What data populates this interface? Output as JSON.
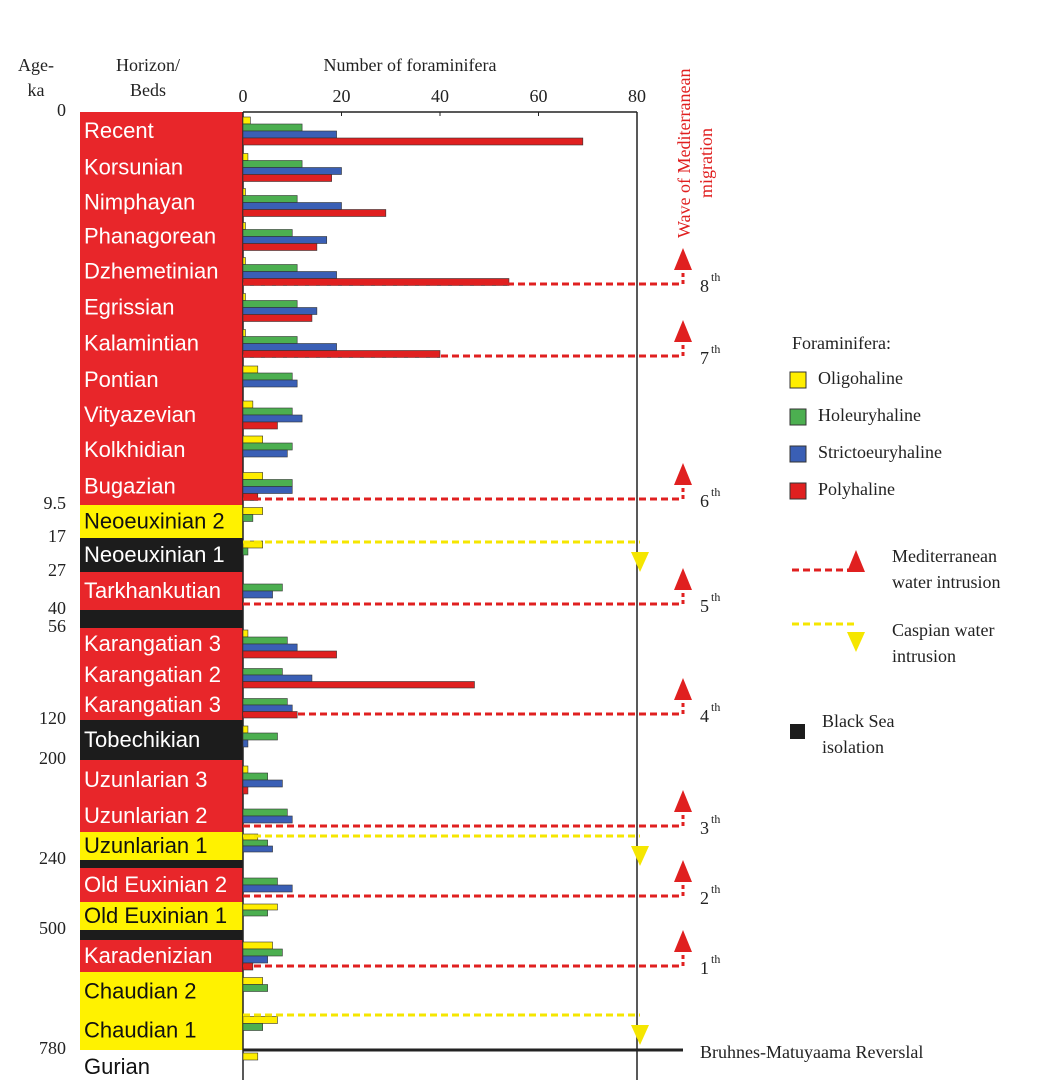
{
  "chart_data": {
    "type": "bar",
    "xlabel": "Number of foraminifera",
    "age_label": [
      "Age-",
      "ka"
    ],
    "horizon_label": [
      "Horizon/",
      "Beds"
    ],
    "wave_title": [
      "Wave of Mediterranean",
      "migration"
    ],
    "xlim": [
      0,
      80
    ],
    "xticks": [
      0,
      20,
      40,
      60,
      80
    ],
    "categories": [
      "Recent",
      "Korsunian",
      "Nimphayan",
      "Phanagorean",
      "Dzhemetinian",
      "Egrissian",
      "Kalamintian",
      "Pontian",
      "Vityazevian",
      "Kolkhidian",
      "Bugazian",
      "Neoeuxinian 2",
      "Neoeuxinian 1",
      "Tarkhankutian",
      null,
      "Karangatian 3",
      "Karangatian 2",
      "Karangatian 3",
      "Tobechikian",
      "Uzunlarian 3",
      "Uzunlarian 2",
      "Uzunlarian 1",
      null,
      "Old Euxinian 2",
      "Old Euxinian 1",
      null,
      "Karadenizian",
      "Chaudian 2",
      "Chaudian 1",
      "Gurian"
    ],
    "horizon_colors": [
      "#e8262a",
      "#e8262a",
      "#e8262a",
      "#e8262a",
      "#e8262a",
      "#e8262a",
      "#e8262a",
      "#e8262a",
      "#e8262a",
      "#e8262a",
      "#e8262a",
      "#fff200",
      "#1c1c1c",
      "#e8262a",
      "#1c1c1c",
      "#e8262a",
      "#e8262a",
      "#e8262a",
      "#1c1c1c",
      "#e8262a",
      "#e8262a",
      "#fff200",
      "#1c1c1c",
      "#e8262a",
      "#fff200",
      "#1c1c1c",
      "#e8262a",
      "#fff200",
      "#fff200",
      "#ffffff"
    ],
    "ages": [
      0,
      null,
      null,
      null,
      null,
      null,
      null,
      null,
      null,
      null,
      null,
      9.5,
      17,
      27,
      40,
      56,
      null,
      null,
      120,
      200,
      null,
      null,
      240,
      null,
      null,
      500,
      null,
      null,
      null,
      780
    ],
    "series": [
      {
        "name": "Oligohaline",
        "color": "#ffee00",
        "values": [
          1.5,
          1,
          0.5,
          0.5,
          0.5,
          0.5,
          0.5,
          3,
          2,
          4,
          4,
          4,
          4,
          0,
          null,
          1,
          0,
          0,
          1,
          1,
          0,
          3,
          null,
          0,
          7,
          null,
          6,
          4,
          7,
          3
        ]
      },
      {
        "name": "Holeuryhaline",
        "color": "#4caf50",
        "values": [
          12,
          12,
          11,
          10,
          11,
          11,
          11,
          10,
          10,
          10,
          10,
          2,
          1,
          8,
          null,
          9,
          8,
          9,
          7,
          5,
          9,
          5,
          null,
          7,
          5,
          null,
          8,
          5,
          4,
          0
        ]
      },
      {
        "name": "Strictoeuryhaline",
        "color": "#3a5fb5",
        "values": [
          19,
          20,
          20,
          17,
          19,
          15,
          19,
          11,
          12,
          9,
          10,
          0,
          0,
          6,
          null,
          11,
          14,
          10,
          1,
          8,
          10,
          6,
          null,
          10,
          0,
          null,
          5,
          0,
          0,
          0
        ]
      },
      {
        "name": "Polyhaline",
        "color": "#e02020",
        "values": [
          69,
          18,
          29,
          15,
          54,
          14,
          40,
          0,
          7,
          0,
          3,
          0,
          0,
          0,
          null,
          19,
          47,
          11,
          0,
          1,
          0,
          0,
          null,
          0,
          0,
          null,
          2,
          0,
          0,
          0
        ]
      }
    ],
    "waves": [
      null,
      null,
      null,
      null,
      {
        "n": "8",
        "sup": "th"
      },
      null,
      {
        "n": "7",
        "sup": "th"
      },
      null,
      null,
      null,
      {
        "n": "6",
        "sup": "th"
      },
      null,
      null,
      {
        "n": "5",
        "sup": "th"
      },
      null,
      null,
      null,
      {
        "n": "4",
        "sup": "th"
      },
      null,
      null,
      {
        "n": "3",
        "sup": "th"
      },
      null,
      null,
      {
        "n": "2",
        "sup": "th"
      },
      null,
      null,
      {
        "n": "1",
        "sup": "th"
      },
      null,
      null,
      null
    ],
    "caspian": [
      false,
      false,
      false,
      false,
      false,
      false,
      false,
      false,
      false,
      false,
      false,
      false,
      true,
      false,
      false,
      false,
      false,
      false,
      false,
      false,
      false,
      true,
      false,
      false,
      false,
      false,
      false,
      false,
      true,
      false
    ],
    "legend_title": "Foraminifera:",
    "symbols": {
      "mediterranean": [
        "Mediterranean",
        "water intrusion"
      ],
      "caspian": [
        "Caspian water",
        "intrusion"
      ],
      "isolation": [
        "Black Sea",
        "isolation"
      ]
    },
    "reversal": "Bruhnes-Matuyaama Reverslal"
  }
}
